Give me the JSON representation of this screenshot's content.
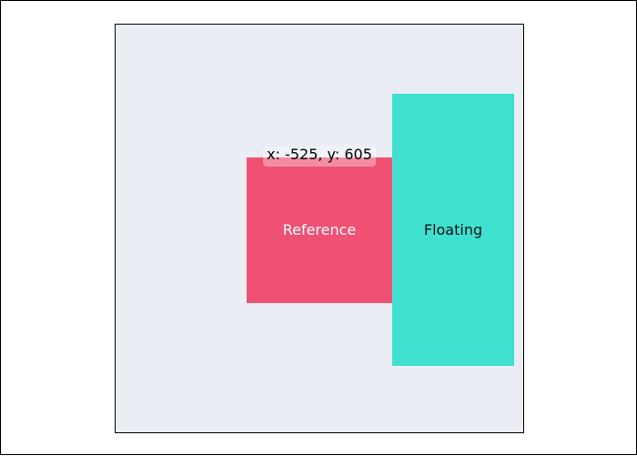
{
  "stage": {
    "background": "#eaedf4"
  },
  "reference": {
    "label": "Reference",
    "color": "#ef5172",
    "coords_text": "x: -525, y: 605"
  },
  "floating": {
    "label": "Floating",
    "color": "#40e0d0"
  }
}
